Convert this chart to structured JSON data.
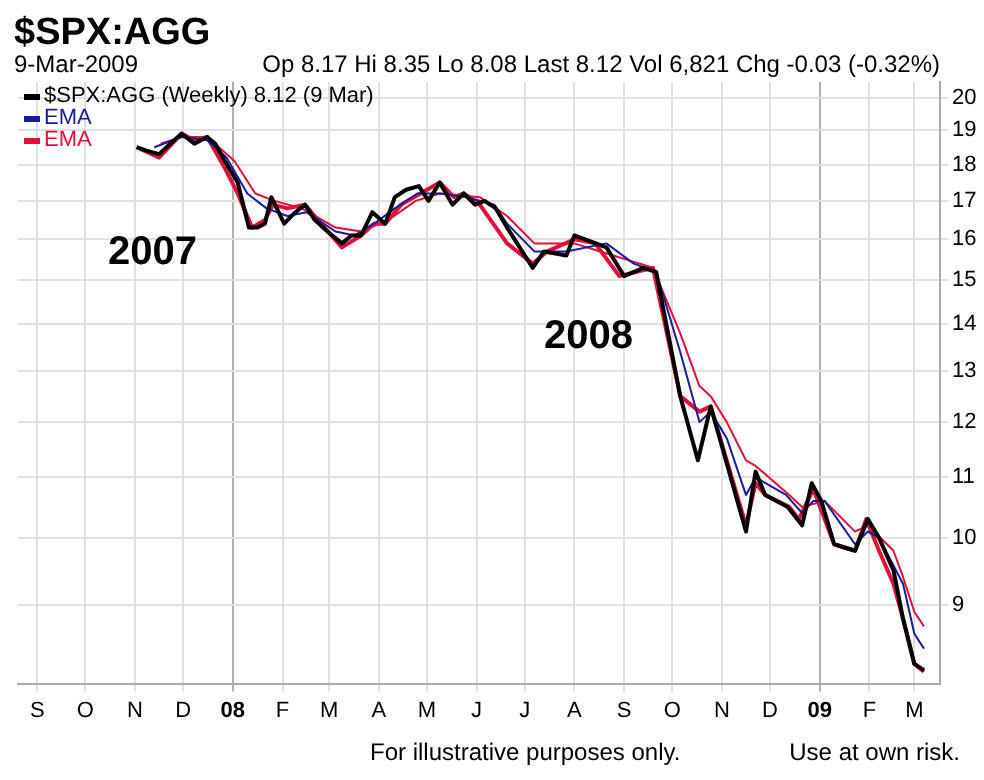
{
  "chart_data": {
    "type": "line",
    "title": "$SPX:AGG",
    "subtitle": "9-Mar-2009",
    "annotations": [
      "Op 8.17 Hi 8.35 Lo 8.08 Last 8.12 Vol 6,821 Chg -0.03 (-0.32%)",
      "2007",
      "2008",
      "For illustrative purposes only.",
      "Use at own risk."
    ],
    "series": [
      {
        "name": "$SPX:AGG (Weekly) 8.12 (9 Mar)",
        "color": "#000000",
        "x": [
          "2007-11-02",
          "2007-11-08",
          "2007-11-16",
          "2007-11-23",
          "2007-11-30",
          "2007-12-08",
          "2007-12-16",
          "2007-12-21",
          "2007-12-27",
          "2008-01-04",
          "2008-01-11",
          "2008-01-16",
          "2008-01-21",
          "2008-01-25",
          "2008-02-02",
          "2008-02-09",
          "2008-02-15",
          "2008-02-21",
          "2008-02-29",
          "2008-03-09",
          "2008-03-15",
          "2008-03-21",
          "2008-03-28",
          "2008-04-05",
          "2008-04-11",
          "2008-04-18",
          "2008-04-26",
          "2008-05-02",
          "2008-05-09",
          "2008-05-17",
          "2008-05-24",
          "2008-05-31",
          "2008-06-06",
          "2008-06-13",
          "2008-06-20",
          "2008-07-06",
          "2008-07-13",
          "2008-07-27",
          "2008-08-01",
          "2008-08-21",
          "2008-09-01",
          "2008-09-13",
          "2008-09-21",
          "2008-10-06",
          "2008-10-17",
          "2008-10-25",
          "2008-11-16",
          "2008-11-22",
          "2008-11-28",
          "2008-12-12",
          "2008-12-21",
          "2008-12-27",
          "2009-01-02",
          "2009-01-10",
          "2009-01-23",
          "2009-01-31",
          "2009-02-07",
          "2009-02-16",
          "2009-02-22",
          "2009-03-01",
          "2009-03-07"
        ],
        "values": [
          18.5,
          18.4,
          18.3,
          18.6,
          18.9,
          18.6,
          18.8,
          18.6,
          18.1,
          17.5,
          16.3,
          16.3,
          16.4,
          17.1,
          16.4,
          16.7,
          16.9,
          16.5,
          16.2,
          15.9,
          16.1,
          16.1,
          16.7,
          16.4,
          17.1,
          17.3,
          17.4,
          17.0,
          17.5,
          16.9,
          17.2,
          16.9,
          17.0,
          16.8,
          16.3,
          15.3,
          15.7,
          15.6,
          16.1,
          15.8,
          15.1,
          15.3,
          15.2,
          12.5,
          11.3,
          12.3,
          10.1,
          11.1,
          10.7,
          10.5,
          10.2,
          10.9,
          10.6,
          9.9,
          9.8,
          10.3,
          10.0,
          9.5,
          8.8,
          8.2,
          8.12
        ]
      },
      {
        "name": "EMA",
        "color": "#1a1a9c",
        "x": [
          "2007-11-13",
          "2007-11-30",
          "2007-12-16",
          "2007-12-28",
          "2008-01-10",
          "2008-01-22",
          "2008-02-04",
          "2008-02-16",
          "2008-03-05",
          "2008-03-17",
          "2008-03-29",
          "2008-04-11",
          "2008-04-25",
          "2008-05-09",
          "2008-05-26",
          "2008-06-12",
          "2008-06-20",
          "2008-07-07",
          "2008-07-27",
          "2008-08-21",
          "2008-09-07",
          "2008-09-21",
          "2008-10-06",
          "2008-10-18",
          "2008-10-25",
          "2008-11-04",
          "2008-11-16",
          "2008-11-22",
          "2008-12-11",
          "2008-12-21",
          "2008-12-28",
          "2009-01-04",
          "2009-01-23",
          "2009-01-31",
          "2009-02-07",
          "2009-02-22",
          "2009-03-01",
          "2009-03-07"
        ],
        "values": [
          18.5,
          18.8,
          18.7,
          18.2,
          17.2,
          16.8,
          16.6,
          16.7,
          16.2,
          16.1,
          16.4,
          16.8,
          17.2,
          17.2,
          17.1,
          16.9,
          16.4,
          15.7,
          15.7,
          15.9,
          15.4,
          15.2,
          13.4,
          12.0,
          12.2,
          11.7,
          10.7,
          11.0,
          10.7,
          10.4,
          10.6,
          10.6,
          9.9,
          10.1,
          10.0,
          9.3,
          8.6,
          8.4
        ]
      },
      {
        "name": "EMA",
        "color": "#e0103a",
        "x": [
          "2007-11-02",
          "2007-11-16",
          "2007-11-30",
          "2007-12-08",
          "2007-12-16",
          "2007-12-27",
          "2008-01-04",
          "2008-01-13",
          "2008-01-21",
          "2008-01-26",
          "2008-02-04",
          "2008-02-15",
          "2008-02-25",
          "2008-03-09",
          "2008-03-21",
          "2008-03-29",
          "2008-04-05",
          "2008-04-15",
          "2008-04-27",
          "2008-05-09",
          "2008-05-18",
          "2008-05-24",
          "2008-06-03",
          "2008-06-20",
          "2008-07-06",
          "2008-07-15",
          "2008-08-01",
          "2008-08-14",
          "2008-08-29",
          "2008-09-19",
          "2008-10-06",
          "2008-10-18",
          "2008-10-25",
          "2008-11-16",
          "2008-11-22",
          "2008-11-28",
          "2008-12-13",
          "2008-12-19",
          "2008-12-28",
          "2009-01-10",
          "2009-01-23",
          "2009-01-30",
          "2009-02-07",
          "2009-02-16",
          "2009-02-22",
          "2009-03-01",
          "2009-03-07"
        ],
        "values": [
          18.5,
          18.2,
          18.9,
          18.7,
          18.8,
          17.9,
          17.2,
          16.3,
          16.5,
          16.9,
          16.8,
          16.9,
          16.4,
          15.8,
          16.1,
          16.4,
          16.4,
          16.9,
          17.2,
          17.5,
          17.1,
          17.2,
          16.9,
          15.9,
          15.4,
          15.7,
          16.0,
          15.9,
          15.1,
          15.3,
          12.5,
          12.2,
          12.3,
          10.2,
          10.9,
          10.7,
          10.5,
          10.3,
          10.8,
          9.9,
          9.8,
          10.3,
          9.8,
          9.3,
          8.8,
          8.2,
          8.1
        ]
      },
      {
        "color": "#e0103a",
        "x": [
          "2007-11-17",
          "2007-11-30",
          "2007-12-16",
          "2008-01-02",
          "2008-01-15",
          "2008-01-27",
          "2008-02-13",
          "2008-03-05",
          "2008-03-21",
          "2008-04-07",
          "2008-04-24",
          "2008-05-09",
          "2008-06-03",
          "2008-06-20",
          "2008-07-07",
          "2008-08-01",
          "2008-08-17",
          "2008-09-19",
          "2008-10-06",
          "2008-10-18",
          "2008-10-25",
          "2008-11-04",
          "2008-11-16",
          "2008-11-22",
          "2008-12-13",
          "2008-12-21",
          "2009-01-04",
          "2009-01-23",
          "2009-01-31",
          "2009-02-16",
          "2009-02-22",
          "2009-03-01",
          "2009-03-07"
        ],
        "values": [
          18.6,
          18.8,
          18.8,
          18.1,
          17.2,
          17.0,
          16.8,
          16.3,
          16.2,
          16.5,
          17.0,
          17.2,
          17.1,
          16.6,
          15.9,
          15.9,
          15.7,
          15.3,
          13.8,
          12.7,
          12.5,
          12.0,
          11.3,
          11.2,
          10.7,
          10.5,
          10.6,
          10.1,
          10.2,
          9.8,
          9.4,
          8.9,
          8.7
        ]
      }
    ],
    "xlim": [
      "2007-08-20",
      "2009-03-17"
    ],
    "xticks": [
      {
        "value": "2007-09-01",
        "label": "S"
      },
      {
        "value": "2007-10-01",
        "label": "O"
      },
      {
        "value": "2007-11-01",
        "label": "N"
      },
      {
        "value": "2007-12-01",
        "label": "D"
      },
      {
        "value": "2008-01-01",
        "label": "08"
      },
      {
        "value": "2008-02-01",
        "label": "F"
      },
      {
        "value": "2008-03-01",
        "label": "M"
      },
      {
        "value": "2008-04-01",
        "label": "A"
      },
      {
        "value": "2008-05-01",
        "label": "M"
      },
      {
        "value": "2008-06-01",
        "label": "J"
      },
      {
        "value": "2008-07-01",
        "label": "J"
      },
      {
        "value": "2008-08-01",
        "label": "A"
      },
      {
        "value": "2008-09-01",
        "label": "S"
      },
      {
        "value": "2008-10-01",
        "label": "O"
      },
      {
        "value": "2008-11-01",
        "label": "N"
      },
      {
        "value": "2008-12-01",
        "label": "D"
      },
      {
        "value": "2009-01-01",
        "label": "09"
      },
      {
        "value": "2009-02-01",
        "label": "F"
      },
      {
        "value": "2009-03-01",
        "label": "M"
      }
    ],
    "ylim": [
      7.95,
      20.5
    ],
    "yticks": [
      9,
      10,
      11,
      12,
      13,
      14,
      15,
      16,
      17,
      18,
      19,
      20
    ],
    "log": "y",
    "grid": true,
    "legend": "top left",
    "marker": "none",
    "line_style": "solid"
  }
}
